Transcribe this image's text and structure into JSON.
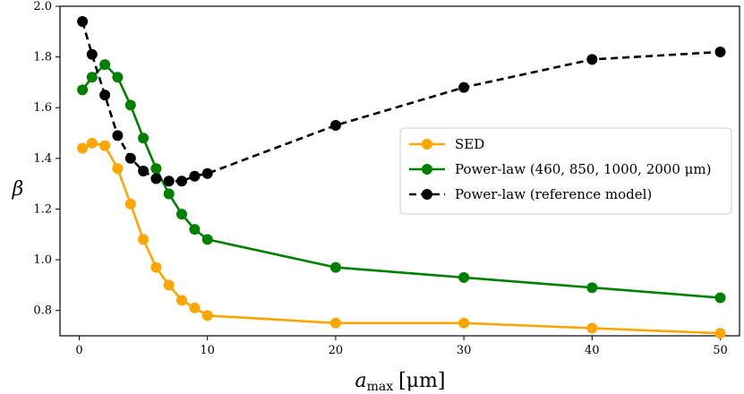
{
  "chart_data": {
    "type": "line",
    "title": "",
    "xlabel": "a_max [μm]",
    "xlabel_main": "a",
    "xlabel_sub": "max",
    "xlabel_unit": "[μm]",
    "ylabel": "β",
    "xlim": [
      -1.5,
      51.5
    ],
    "ylim": [
      0.7,
      2.0
    ],
    "x_ticks": [
      0,
      10,
      20,
      30,
      40,
      50
    ],
    "x_tick_labels": [
      "0",
      "10",
      "20",
      "30",
      "40",
      "50"
    ],
    "y_ticks": [
      0.8,
      1.0,
      1.2,
      1.4,
      1.6,
      1.8,
      2.0
    ],
    "y_tick_labels": [
      "0.8",
      "1.0",
      "1.2",
      "1.4",
      "1.6",
      "1.8",
      "2.0"
    ],
    "grid": false,
    "legend_position": "center-right",
    "series": [
      {
        "name": "SED",
        "color": "#FFA500",
        "linestyle": "solid",
        "x": [
          0.25,
          1,
          2,
          3,
          4,
          5,
          6,
          7,
          8,
          9,
          10,
          20,
          30,
          40,
          50
        ],
        "values": [
          1.44,
          1.46,
          1.45,
          1.36,
          1.22,
          1.08,
          0.97,
          0.9,
          0.84,
          0.81,
          0.78,
          0.75,
          0.75,
          0.73,
          0.71
        ]
      },
      {
        "name": "Power-law (460, 850, 1000, 2000 μm)",
        "color": "#008000",
        "linestyle": "solid",
        "x": [
          0.25,
          1,
          2,
          3,
          4,
          5,
          6,
          7,
          8,
          9,
          10,
          20,
          30,
          40,
          50
        ],
        "values": [
          1.67,
          1.72,
          1.77,
          1.72,
          1.61,
          1.48,
          1.36,
          1.26,
          1.18,
          1.12,
          1.08,
          0.97,
          0.93,
          0.89,
          0.85
        ]
      },
      {
        "name": "Power-law (reference model)",
        "color": "#000000",
        "linestyle": "dashed",
        "x": [
          0.25,
          1,
          2,
          3,
          4,
          5,
          6,
          7,
          8,
          9,
          10,
          20,
          30,
          40,
          50
        ],
        "values": [
          1.94,
          1.81,
          1.65,
          1.49,
          1.4,
          1.35,
          1.32,
          1.31,
          1.31,
          1.33,
          1.34,
          1.53,
          1.68,
          1.79,
          1.82
        ]
      }
    ]
  }
}
